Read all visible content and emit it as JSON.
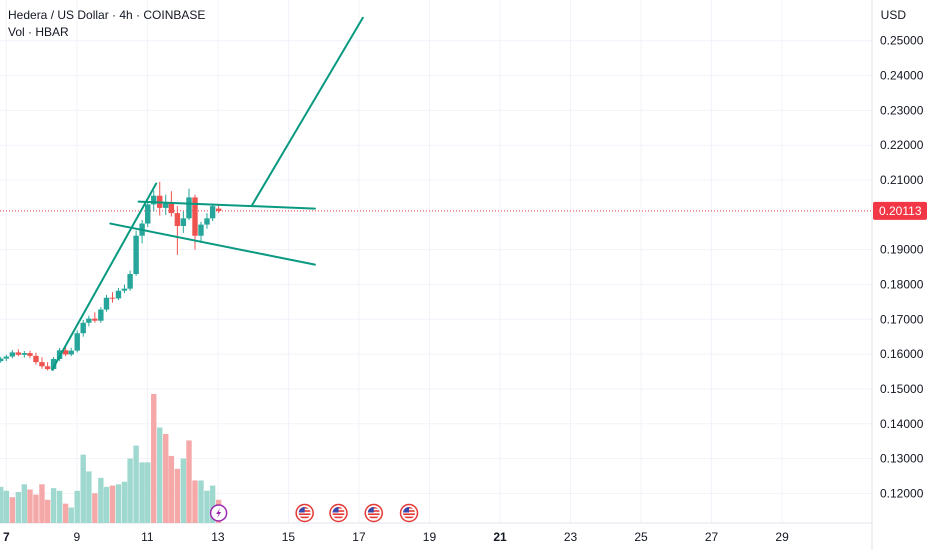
{
  "header": {
    "title": "Hedera / US Dollar · 4h · COINBASE",
    "volume_label": "Vol · HBAR"
  },
  "currency": "USD",
  "colors": {
    "up": "#26a69a",
    "down": "#ef5350",
    "up_volume": "#9fd8cf",
    "down_volume": "#f4a8a8",
    "trendline": "#089981",
    "last_price": "#f23645",
    "grid": "#f0f3fa",
    "axis_text": "#131722",
    "event_purple": "#9c27b0"
  },
  "chart_data": {
    "type": "candlestick",
    "title": "Hedera / US Dollar · 4h · COINBASE",
    "y_axis": {
      "ticks": [
        "0.25000",
        "0.24000",
        "0.23000",
        "0.22000",
        "0.21000",
        "0.20000",
        "0.19000",
        "0.18000",
        "0.17000",
        "0.16000",
        "0.15000",
        "0.14000",
        "0.13000",
        "0.12000"
      ],
      "range": [
        0.1115,
        0.2617
      ],
      "position": "right"
    },
    "x_axis": {
      "ticks": [
        {
          "label": "7",
          "day": 7,
          "bold": true
        },
        {
          "label": "9",
          "day": 9,
          "bold": false
        },
        {
          "label": "11",
          "day": 11,
          "bold": false
        },
        {
          "label": "13",
          "day": 13,
          "bold": false
        },
        {
          "label": "15",
          "day": 15,
          "bold": false
        },
        {
          "label": "17",
          "day": 17,
          "bold": false
        },
        {
          "label": "19",
          "day": 19,
          "bold": false
        },
        {
          "label": "21",
          "day": 21,
          "bold": true
        },
        {
          "label": "23",
          "day": 23,
          "bold": false
        },
        {
          "label": "25",
          "day": 25,
          "bold": false
        },
        {
          "label": "27",
          "day": 27,
          "bold": false
        },
        {
          "label": "29",
          "day": 29,
          "bold": false
        }
      ],
      "unit": "day",
      "range": [
        6.82,
        31.55
      ]
    },
    "last_price": {
      "value": 0.20113,
      "label": "0.20113"
    },
    "candles": [
      {
        "day": 6.84,
        "o": 0.158,
        "h": 0.1592,
        "l": 0.1575,
        "c": 0.1587
      },
      {
        "day": 7.0,
        "o": 0.1587,
        "h": 0.1598,
        "l": 0.158,
        "c": 0.1593
      },
      {
        "day": 7.17,
        "o": 0.1593,
        "h": 0.1612,
        "l": 0.1588,
        "c": 0.1605
      },
      {
        "day": 7.34,
        "o": 0.1605,
        "h": 0.1614,
        "l": 0.1594,
        "c": 0.1598
      },
      {
        "day": 7.51,
        "o": 0.1598,
        "h": 0.1609,
        "l": 0.159,
        "c": 0.1603
      },
      {
        "day": 7.67,
        "o": 0.1603,
        "h": 0.161,
        "l": 0.1588,
        "c": 0.1595
      },
      {
        "day": 7.84,
        "o": 0.1595,
        "h": 0.1604,
        "l": 0.157,
        "c": 0.1577
      },
      {
        "day": 8.01,
        "o": 0.1577,
        "h": 0.1591,
        "l": 0.1558,
        "c": 0.1565
      },
      {
        "day": 8.17,
        "o": 0.1565,
        "h": 0.1577,
        "l": 0.1553,
        "c": 0.1557
      },
      {
        "day": 8.34,
        "o": 0.1557,
        "h": 0.1592,
        "l": 0.1553,
        "c": 0.1586
      },
      {
        "day": 8.51,
        "o": 0.1586,
        "h": 0.1618,
        "l": 0.158,
        "c": 0.1611
      },
      {
        "day": 8.68,
        "o": 0.1611,
        "h": 0.162,
        "l": 0.1594,
        "c": 0.1599
      },
      {
        "day": 8.84,
        "o": 0.1599,
        "h": 0.1618,
        "l": 0.1594,
        "c": 0.161
      },
      {
        "day": 9.01,
        "o": 0.161,
        "h": 0.1668,
        "l": 0.1605,
        "c": 0.166
      },
      {
        "day": 9.18,
        "o": 0.166,
        "h": 0.1698,
        "l": 0.165,
        "c": 0.169
      },
      {
        "day": 9.34,
        "o": 0.169,
        "h": 0.171,
        "l": 0.168,
        "c": 0.1702
      },
      {
        "day": 9.51,
        "o": 0.1702,
        "h": 0.172,
        "l": 0.169,
        "c": 0.1696
      },
      {
        "day": 9.68,
        "o": 0.1696,
        "h": 0.1735,
        "l": 0.169,
        "c": 0.1728
      },
      {
        "day": 9.84,
        "o": 0.1728,
        "h": 0.177,
        "l": 0.1722,
        "c": 0.1762
      },
      {
        "day": 10.01,
        "o": 0.1762,
        "h": 0.1778,
        "l": 0.1748,
        "c": 0.176
      },
      {
        "day": 10.18,
        "o": 0.176,
        "h": 0.179,
        "l": 0.1755,
        "c": 0.1782
      },
      {
        "day": 10.35,
        "o": 0.1782,
        "h": 0.18,
        "l": 0.1775,
        "c": 0.1788
      },
      {
        "day": 10.51,
        "o": 0.1788,
        "h": 0.184,
        "l": 0.1782,
        "c": 0.183
      },
      {
        "day": 10.68,
        "o": 0.183,
        "h": 0.1955,
        "l": 0.1825,
        "c": 0.194
      },
      {
        "day": 10.85,
        "o": 0.194,
        "h": 0.1985,
        "l": 0.1918,
        "c": 0.1975
      },
      {
        "day": 11.01,
        "o": 0.1975,
        "h": 0.204,
        "l": 0.1965,
        "c": 0.203
      },
      {
        "day": 11.18,
        "o": 0.203,
        "h": 0.207,
        "l": 0.201,
        "c": 0.2055
      },
      {
        "day": 11.35,
        "o": 0.2055,
        "h": 0.2095,
        "l": 0.1998,
        "c": 0.202
      },
      {
        "day": 11.52,
        "o": 0.202,
        "h": 0.2058,
        "l": 0.2,
        "c": 0.2035
      },
      {
        "day": 11.68,
        "o": 0.2035,
        "h": 0.2068,
        "l": 0.1995,
        "c": 0.2005
      },
      {
        "day": 11.85,
        "o": 0.2005,
        "h": 0.2025,
        "l": 0.1885,
        "c": 0.1968
      },
      {
        "day": 12.02,
        "o": 0.1968,
        "h": 0.201,
        "l": 0.1948,
        "c": 0.199
      },
      {
        "day": 12.18,
        "o": 0.199,
        "h": 0.2075,
        "l": 0.1985,
        "c": 0.205
      },
      {
        "day": 12.35,
        "o": 0.205,
        "h": 0.2058,
        "l": 0.19,
        "c": 0.194
      },
      {
        "day": 12.52,
        "o": 0.194,
        "h": 0.198,
        "l": 0.192,
        "c": 0.1972
      },
      {
        "day": 12.69,
        "o": 0.1972,
        "h": 0.2005,
        "l": 0.196,
        "c": 0.199
      },
      {
        "day": 12.85,
        "o": 0.199,
        "h": 0.2032,
        "l": 0.1982,
        "c": 0.2025
      },
      {
        "day": 13.02,
        "o": 0.2018,
        "h": 0.2028,
        "l": 0.2005,
        "c": 0.2011
      }
    ],
    "volume": [
      {
        "day": 6.84,
        "v": 0.28,
        "up": true
      },
      {
        "day": 7.0,
        "v": 0.25,
        "up": true
      },
      {
        "day": 7.17,
        "v": 0.2,
        "up": false
      },
      {
        "day": 7.34,
        "v": 0.24,
        "up": true
      },
      {
        "day": 7.51,
        "v": 0.3,
        "up": true
      },
      {
        "day": 7.67,
        "v": 0.26,
        "up": false
      },
      {
        "day": 7.84,
        "v": 0.22,
        "up": false
      },
      {
        "day": 8.01,
        "v": 0.3,
        "up": false
      },
      {
        "day": 8.17,
        "v": 0.18,
        "up": false
      },
      {
        "day": 8.34,
        "v": 0.27,
        "up": true
      },
      {
        "day": 8.51,
        "v": 0.25,
        "up": true
      },
      {
        "day": 8.68,
        "v": 0.15,
        "up": false
      },
      {
        "day": 8.84,
        "v": 0.12,
        "up": true
      },
      {
        "day": 9.01,
        "v": 0.25,
        "up": true
      },
      {
        "day": 9.18,
        "v": 0.53,
        "up": true
      },
      {
        "day": 9.34,
        "v": 0.4,
        "up": true
      },
      {
        "day": 9.51,
        "v": 0.23,
        "up": false
      },
      {
        "day": 9.68,
        "v": 0.35,
        "up": true
      },
      {
        "day": 9.84,
        "v": 0.28,
        "up": true
      },
      {
        "day": 10.01,
        "v": 0.29,
        "up": false
      },
      {
        "day": 10.18,
        "v": 0.3,
        "up": true
      },
      {
        "day": 10.35,
        "v": 0.32,
        "up": true
      },
      {
        "day": 10.51,
        "v": 0.5,
        "up": true
      },
      {
        "day": 10.68,
        "v": 0.6,
        "up": true
      },
      {
        "day": 10.85,
        "v": 0.47,
        "up": true
      },
      {
        "day": 11.01,
        "v": 0.47,
        "up": true
      },
      {
        "day": 11.18,
        "v": 1.0,
        "up": false
      },
      {
        "day": 11.35,
        "v": 0.74,
        "up": true
      },
      {
        "day": 11.52,
        "v": 0.69,
        "up": false
      },
      {
        "day": 11.68,
        "v": 0.52,
        "up": false
      },
      {
        "day": 11.85,
        "v": 0.42,
        "up": false
      },
      {
        "day": 12.02,
        "v": 0.5,
        "up": true
      },
      {
        "day": 12.18,
        "v": 0.64,
        "up": false
      },
      {
        "day": 12.35,
        "v": 0.33,
        "up": false
      },
      {
        "day": 12.52,
        "v": 0.33,
        "up": true
      },
      {
        "day": 12.69,
        "v": 0.25,
        "up": true
      },
      {
        "day": 12.85,
        "v": 0.29,
        "up": true
      },
      {
        "day": 13.02,
        "v": 0.18,
        "up": false
      }
    ],
    "trendlines": [
      {
        "name": "flagpole",
        "from": {
          "day": 8.3,
          "price": 0.1555
        },
        "to": {
          "day": 11.25,
          "price": 0.209
        }
      },
      {
        "name": "flag-top",
        "from": {
          "day": 10.75,
          "price": 0.2038
        },
        "to": {
          "day": 15.75,
          "price": 0.2018
        }
      },
      {
        "name": "flag-bottom",
        "from": {
          "day": 9.95,
          "price": 0.1975
        },
        "to": {
          "day": 15.75,
          "price": 0.1857
        }
      },
      {
        "name": "breakout-projection",
        "from": {
          "day": 13.97,
          "price": 0.2028
        },
        "to": {
          "day": 17.11,
          "price": 0.2566
        }
      }
    ],
    "events": [
      {
        "day": 13.02,
        "type": "lightning"
      },
      {
        "day": 15.46,
        "type": "us-flag"
      },
      {
        "day": 16.42,
        "type": "us-flag"
      },
      {
        "day": 17.42,
        "type": "us-flag"
      },
      {
        "day": 18.42,
        "type": "us-flag"
      }
    ],
    "grid": true
  }
}
